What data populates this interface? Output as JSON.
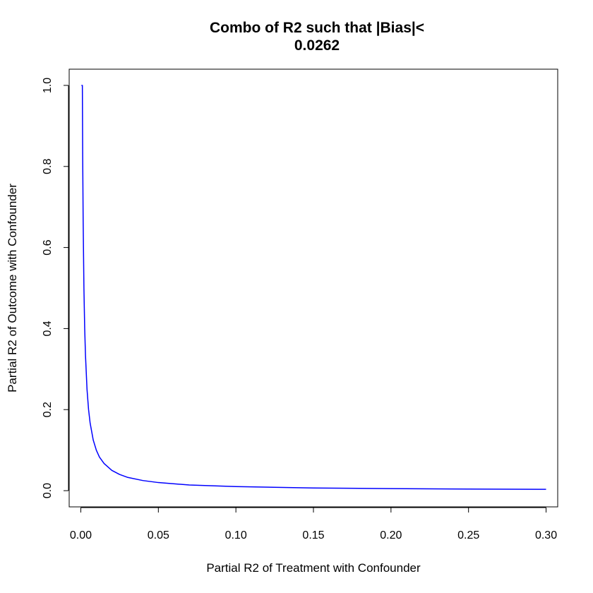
{
  "chart_data": {
    "type": "line",
    "title": [
      "Combo of R2 such that |Bias|<",
      "0.0262"
    ],
    "xlabel": "Partial R2 of Treatment with Confounder",
    "ylabel": "Partial R2 of Outcome with Confounder",
    "xlim": [
      -0.0075,
      0.3075
    ],
    "ylim": [
      -0.04,
      1.04
    ],
    "x_ticks": [
      "0.00",
      "0.05",
      "0.10",
      "0.15",
      "0.20",
      "0.25",
      "0.30"
    ],
    "y_ticks": [
      "0.0",
      "0.2",
      "0.4",
      "0.6",
      "0.8",
      "1.0"
    ],
    "grid": false,
    "series": [
      {
        "color": "#0000ff",
        "x": [
          0.0004,
          0.001,
          0.0012,
          0.0015,
          0.002,
          0.0025,
          0.003,
          0.004,
          0.005,
          0.006,
          0.008,
          0.01,
          0.012,
          0.015,
          0.02,
          0.025,
          0.03,
          0.04,
          0.05,
          0.07,
          0.1,
          0.15,
          0.2,
          0.25,
          0.3
        ],
        "y": [
          1.0,
          1.0,
          0.83,
          0.67,
          0.5,
          0.4,
          0.335,
          0.25,
          0.2,
          0.167,
          0.125,
          0.1,
          0.083,
          0.067,
          0.05,
          0.04,
          0.033,
          0.025,
          0.02,
          0.014,
          0.01,
          0.0067,
          0.005,
          0.004,
          0.0033
        ]
      }
    ]
  }
}
